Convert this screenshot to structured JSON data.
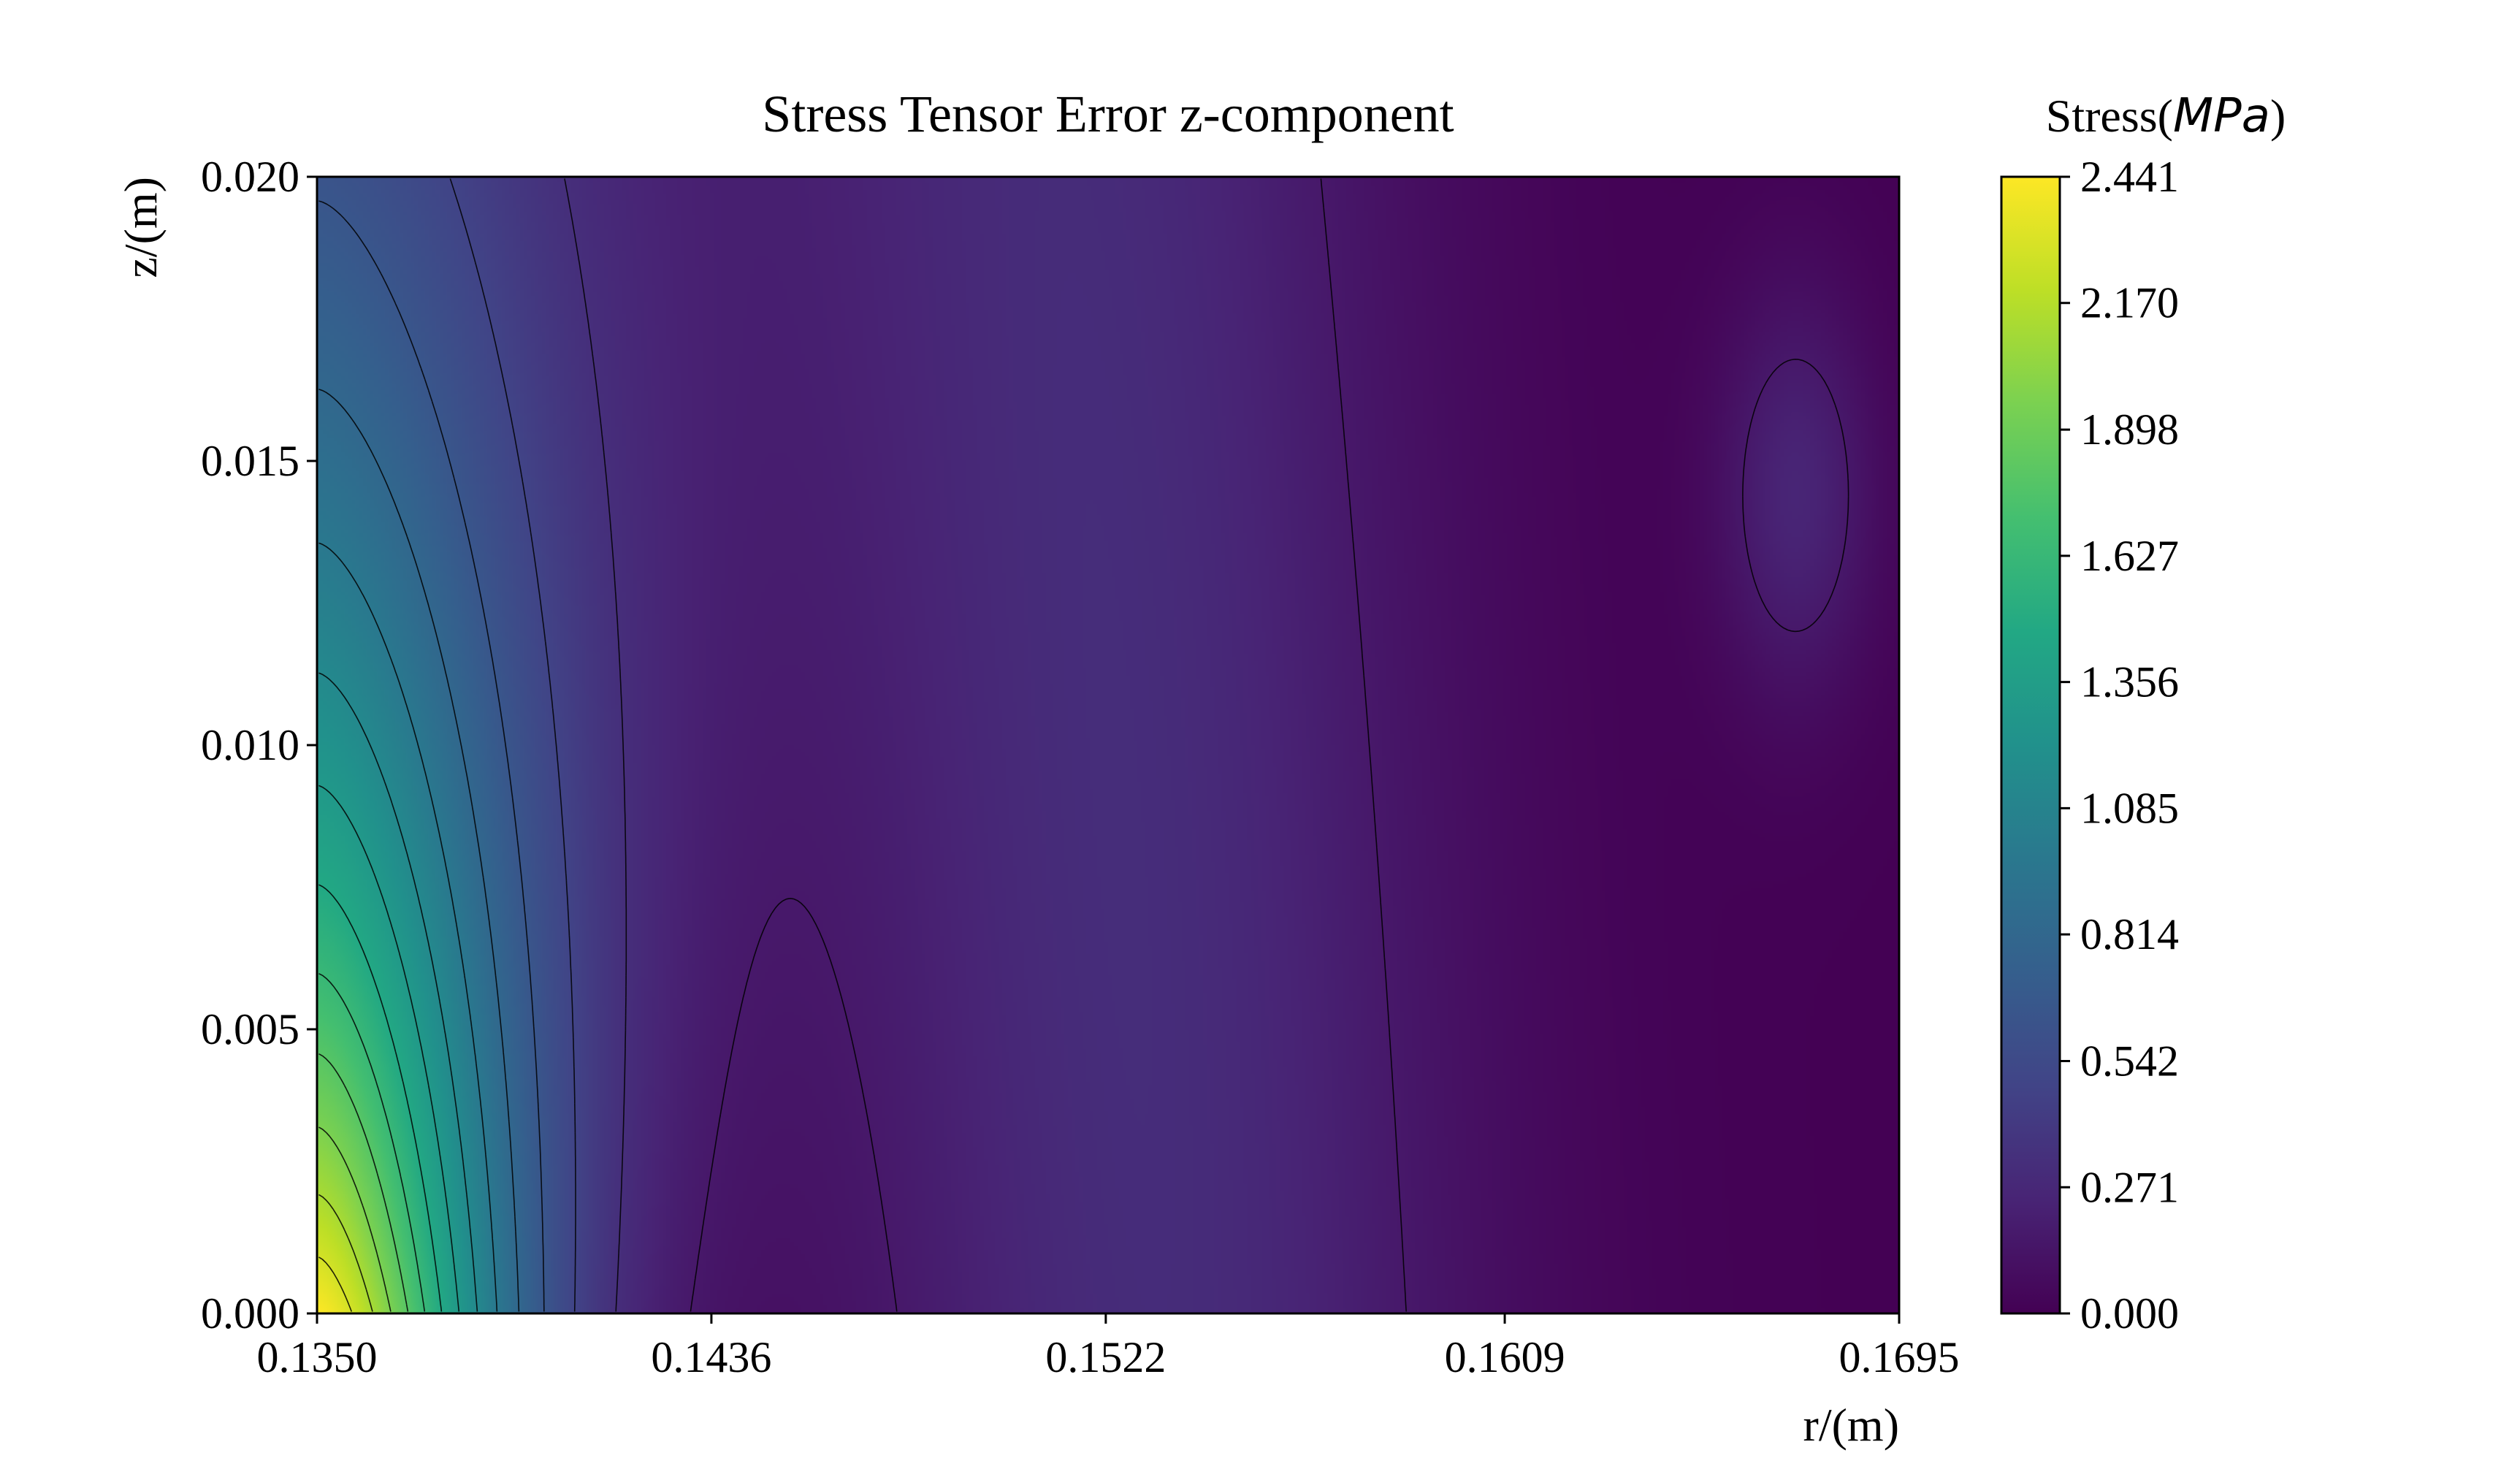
{
  "chart_data": {
    "type": "heatmap",
    "title": "Stress Tensor Error z-component",
    "xlabel": "r/(m)",
    "ylabel": "z/(m)",
    "colorbar": {
      "label_prefix": "Stress(",
      "label_unit": "MPa",
      "label_suffix": ")",
      "ticks": [
        "0.000",
        "0.271",
        "0.542",
        "0.814",
        "1.085",
        "1.356",
        "1.627",
        "1.898",
        "2.170",
        "2.441"
      ],
      "range": [
        0.0,
        2.441
      ],
      "colormap": "viridis"
    },
    "xlim": [
      0.135,
      0.1695
    ],
    "ylim": [
      0.0,
      0.02
    ],
    "xticks": [
      "0.1350",
      "0.1436",
      "0.1522",
      "0.1609",
      "0.1695"
    ],
    "yticks": [
      "0.000",
      "0.005",
      "0.010",
      "0.015",
      "0.020"
    ],
    "field_features": [
      {
        "feature": "peak",
        "r": 0.135,
        "z": 0.0,
        "value": 2.441
      },
      {
        "feature": "low-valley",
        "r": 0.1455,
        "z": 0.012,
        "value": 0.02
      },
      {
        "feature": "moderate-plateau",
        "r": 0.1525,
        "z": 0.01,
        "value": 0.3
      },
      {
        "feature": "low-valley",
        "r": 0.1625,
        "z": 0.004,
        "value": 0.02
      },
      {
        "feature": "local-max",
        "r": 0.1675,
        "z": 0.0145,
        "value": 0.25
      }
    ],
    "contour_interval": 0.163,
    "grid": false
  }
}
